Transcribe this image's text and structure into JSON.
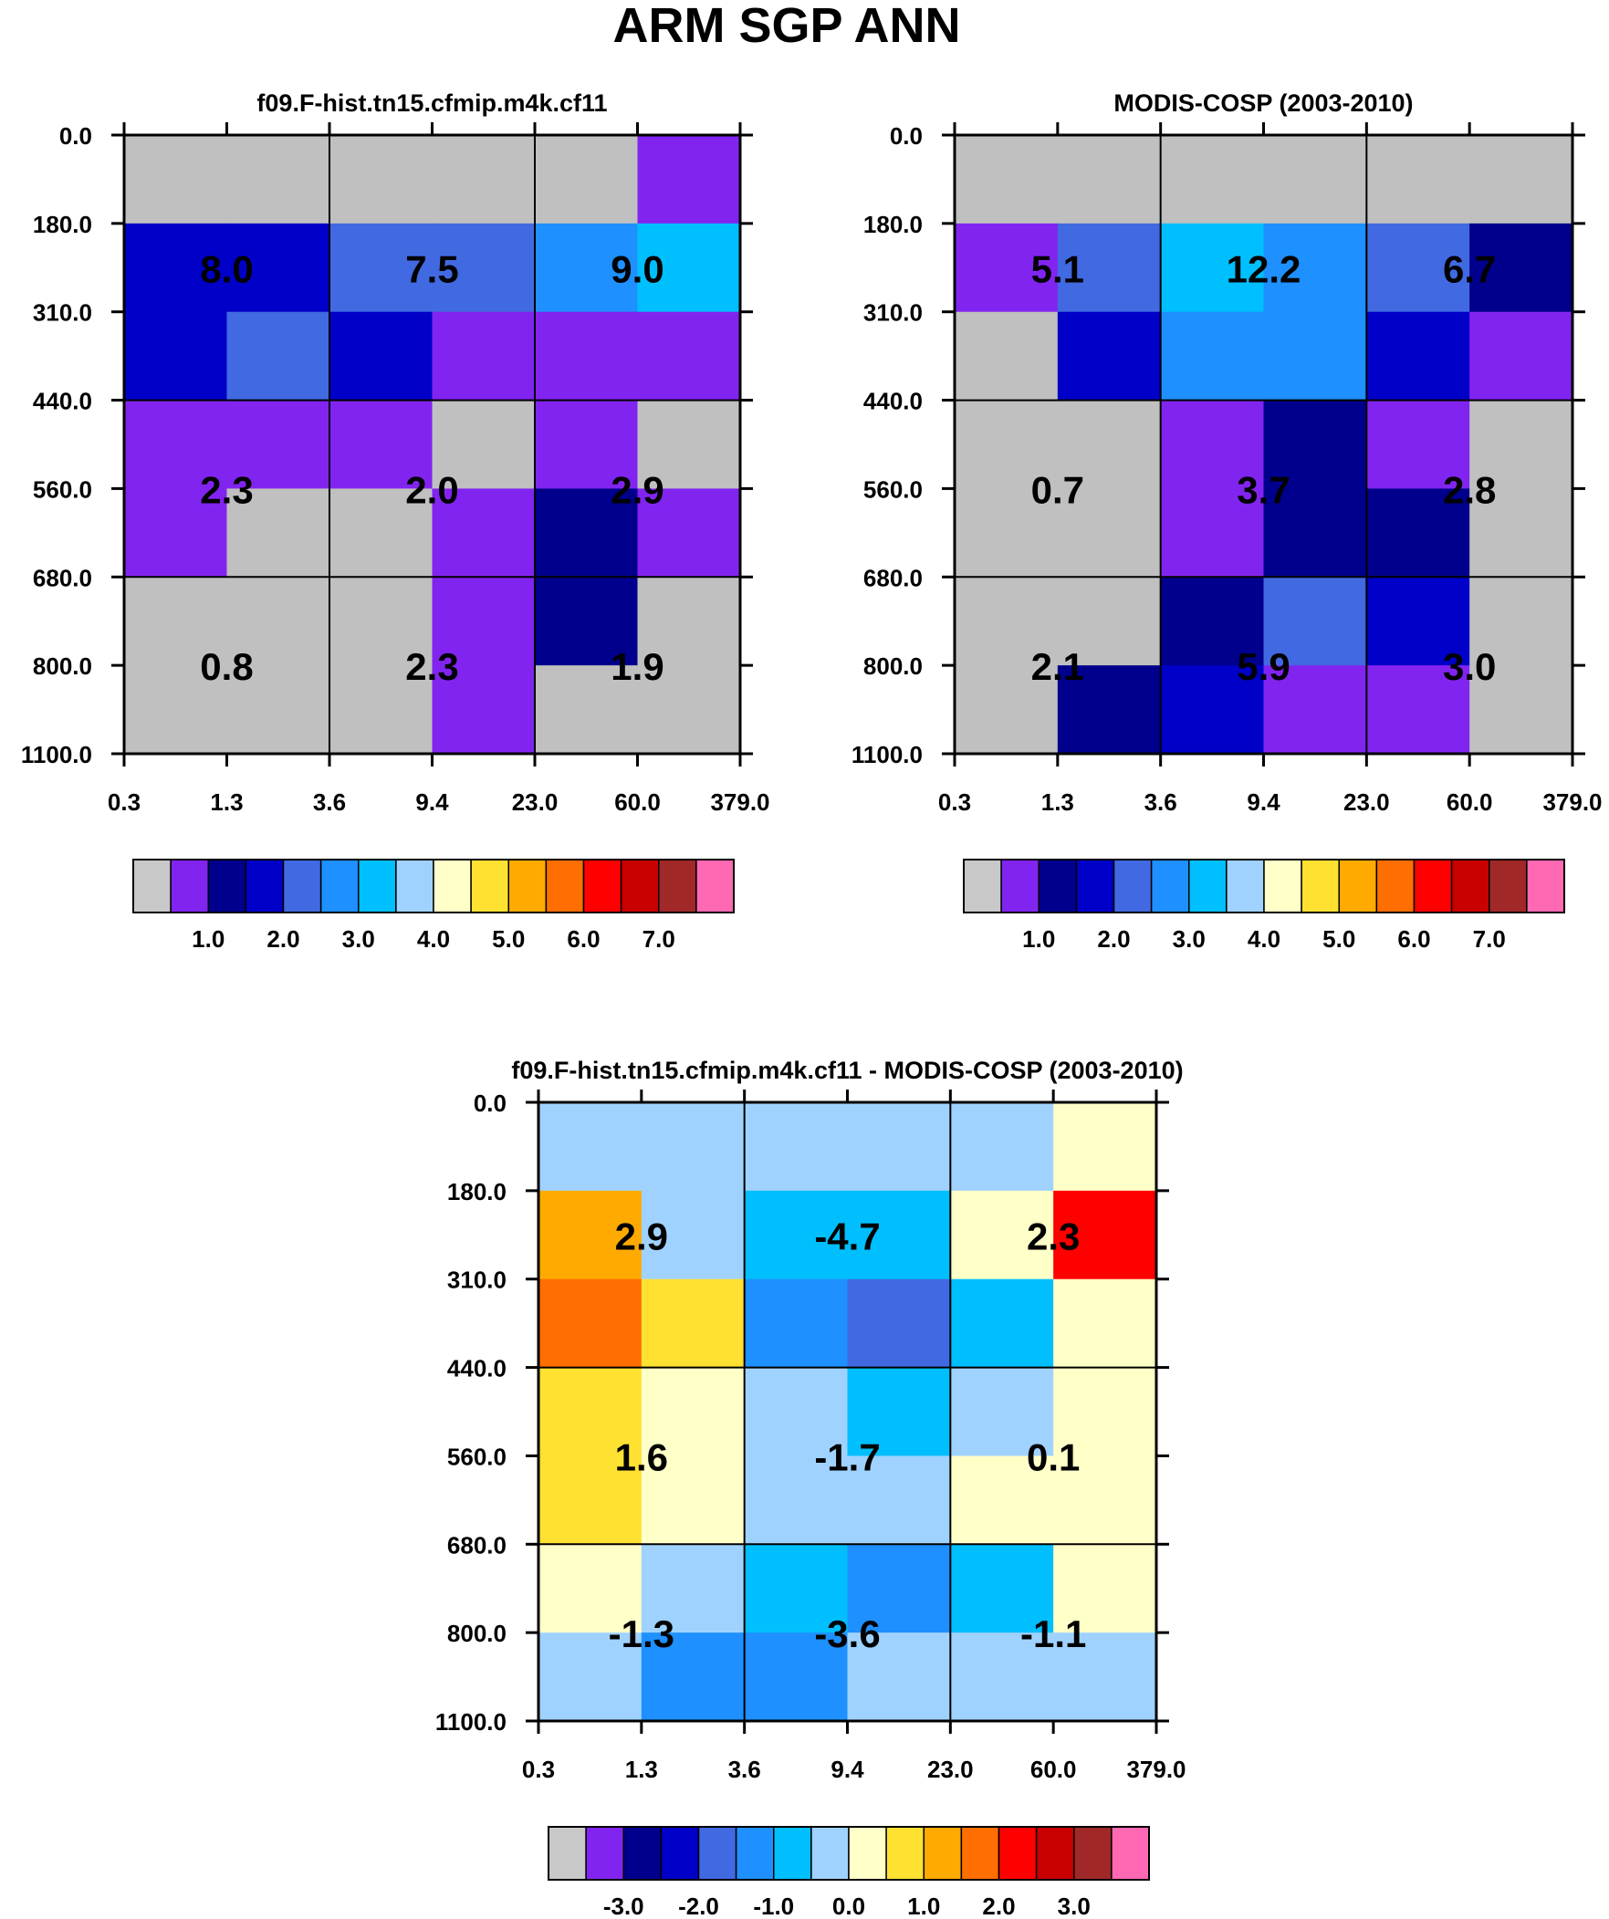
{
  "figure_title": "ARM SGP ANN",
  "chart_data": [
    {
      "type": "heatmap",
      "title": "f09.F-hist.tn15.cfmip.m4k.cf11",
      "x_tick_labels": [
        "0.3",
        "1.3",
        "3.6",
        "9.4",
        "23.0",
        "60.0",
        "379.0"
      ],
      "y_tick_labels": [
        "0.0",
        "180.0",
        "310.0",
        "440.0",
        "560.0",
        "680.0",
        "800.0",
        "1100.0"
      ],
      "cell_colors": [
        [
          "#c0c0c0",
          "#c0c0c0",
          "#c0c0c0",
          "#c0c0c0",
          "#c0c0c0",
          "#8224f0"
        ],
        [
          "#0000c8",
          "#0000c8",
          "#4169e1",
          "#4169e1",
          "#1e90ff",
          "#00bfff"
        ],
        [
          "#0000c8",
          "#4169e1",
          "#0000c8",
          "#8224f0",
          "#8224f0",
          "#8224f0"
        ],
        [
          "#8224f0",
          "#8224f0",
          "#8224f0",
          "#c0c0c0",
          "#8224f0",
          "#c0c0c0"
        ],
        [
          "#8224f0",
          "#c0c0c0",
          "#c0c0c0",
          "#8224f0",
          "#00008c",
          "#8224f0"
        ],
        [
          "#c0c0c0",
          "#c0c0c0",
          "#c0c0c0",
          "#8224f0",
          "#00008c",
          "#c0c0c0"
        ],
        [
          "#c0c0c0",
          "#c0c0c0",
          "#c0c0c0",
          "#8224f0",
          "#c0c0c0",
          "#c0c0c0"
        ]
      ],
      "box_values": [
        [
          "8.0",
          "7.5",
          "9.0"
        ],
        [
          "2.3",
          "2.0",
          "2.9"
        ],
        [
          "0.8",
          "2.3",
          "1.9"
        ]
      ],
      "colorbar": {
        "colors": [
          "#c8c8c8",
          "#8224f0",
          "#00008c",
          "#0000c8",
          "#4169e1",
          "#1e90ff",
          "#00bfff",
          "#a0d2ff",
          "#ffffc8",
          "#ffe132",
          "#ffaa00",
          "#ff6e00",
          "#ff0000",
          "#c80000",
          "#a02828",
          "#ff69b4"
        ],
        "labels": [
          "1.0",
          "2.0",
          "3.0",
          "4.0",
          "5.0",
          "6.0",
          "7.0"
        ]
      }
    },
    {
      "type": "heatmap",
      "title": "MODIS-COSP (2003-2010)",
      "x_tick_labels": [
        "0.3",
        "1.3",
        "3.6",
        "9.4",
        "23.0",
        "60.0",
        "379.0"
      ],
      "y_tick_labels": [
        "0.0",
        "180.0",
        "310.0",
        "440.0",
        "560.0",
        "680.0",
        "800.0",
        "1100.0"
      ],
      "cell_colors": [
        [
          "#c0c0c0",
          "#c0c0c0",
          "#c0c0c0",
          "#c0c0c0",
          "#c0c0c0",
          "#c0c0c0"
        ],
        [
          "#8224f0",
          "#4169e1",
          "#00bfff",
          "#1e90ff",
          "#4169e1",
          "#00008c"
        ],
        [
          "#c0c0c0",
          "#0000c8",
          "#1e90ff",
          "#1e90ff",
          "#0000c8",
          "#8224f0"
        ],
        [
          "#c0c0c0",
          "#c0c0c0",
          "#8224f0",
          "#00008c",
          "#8224f0",
          "#c0c0c0"
        ],
        [
          "#c0c0c0",
          "#c0c0c0",
          "#8224f0",
          "#00008c",
          "#00008c",
          "#c0c0c0"
        ],
        [
          "#c0c0c0",
          "#c0c0c0",
          "#00008c",
          "#4169e1",
          "#0000c8",
          "#c0c0c0"
        ],
        [
          "#c0c0c0",
          "#00008c",
          "#0000c8",
          "#8224f0",
          "#8224f0",
          "#c0c0c0"
        ]
      ],
      "box_values": [
        [
          "5.1",
          "12.2",
          "6.7"
        ],
        [
          "0.7",
          "3.7",
          "2.8"
        ],
        [
          "2.1",
          "5.9",
          "3.0"
        ]
      ],
      "colorbar": {
        "colors": [
          "#c8c8c8",
          "#8224f0",
          "#00008c",
          "#0000c8",
          "#4169e1",
          "#1e90ff",
          "#00bfff",
          "#a0d2ff",
          "#ffffc8",
          "#ffe132",
          "#ffaa00",
          "#ff6e00",
          "#ff0000",
          "#c80000",
          "#a02828",
          "#ff69b4"
        ],
        "labels": [
          "1.0",
          "2.0",
          "3.0",
          "4.0",
          "5.0",
          "6.0",
          "7.0"
        ]
      }
    },
    {
      "type": "heatmap",
      "title": "f09.F-hist.tn15.cfmip.m4k.cf11 - MODIS-COSP (2003-2010)",
      "x_tick_labels": [
        "0.3",
        "1.3",
        "3.6",
        "9.4",
        "23.0",
        "60.0",
        "379.0"
      ],
      "y_tick_labels": [
        "0.0",
        "180.0",
        "310.0",
        "440.0",
        "560.0",
        "680.0",
        "800.0",
        "1100.0"
      ],
      "cell_colors": [
        [
          "#a0d2ff",
          "#a0d2ff",
          "#a0d2ff",
          "#a0d2ff",
          "#a0d2ff",
          "#ffffc8"
        ],
        [
          "#ffaa00",
          "#a0d2ff",
          "#00bfff",
          "#00bfff",
          "#ffffc8",
          "#ff0000"
        ],
        [
          "#ff6e00",
          "#ffe132",
          "#1e90ff",
          "#4169e1",
          "#00bfff",
          "#ffffc8"
        ],
        [
          "#ffe132",
          "#ffffc8",
          "#a0d2ff",
          "#00bfff",
          "#a0d2ff",
          "#ffffc8"
        ],
        [
          "#ffe132",
          "#ffffc8",
          "#a0d2ff",
          "#a0d2ff",
          "#ffffc8",
          "#ffffc8"
        ],
        [
          "#ffffc8",
          "#a0d2ff",
          "#00bfff",
          "#1e90ff",
          "#00bfff",
          "#ffffc8"
        ],
        [
          "#a0d2ff",
          "#1e90ff",
          "#1e90ff",
          "#a0d2ff",
          "#a0d2ff",
          "#a0d2ff"
        ]
      ],
      "box_values": [
        [
          "2.9",
          "-4.7",
          "2.3"
        ],
        [
          "1.6",
          "-1.7",
          "0.1"
        ],
        [
          "-1.3",
          "-3.6",
          "-1.1"
        ]
      ],
      "colorbar": {
        "colors": [
          "#c8c8c8",
          "#8224f0",
          "#00008c",
          "#0000c8",
          "#4169e1",
          "#1e90ff",
          "#00bfff",
          "#a0d2ff",
          "#ffffc8",
          "#ffe132",
          "#ffaa00",
          "#ff6e00",
          "#ff0000",
          "#c80000",
          "#a02828",
          "#ff69b4"
        ],
        "labels": [
          "-3.0",
          "-2.0",
          "-1.0",
          "0.0",
          "1.0",
          "2.0",
          "3.0"
        ]
      }
    }
  ]
}
